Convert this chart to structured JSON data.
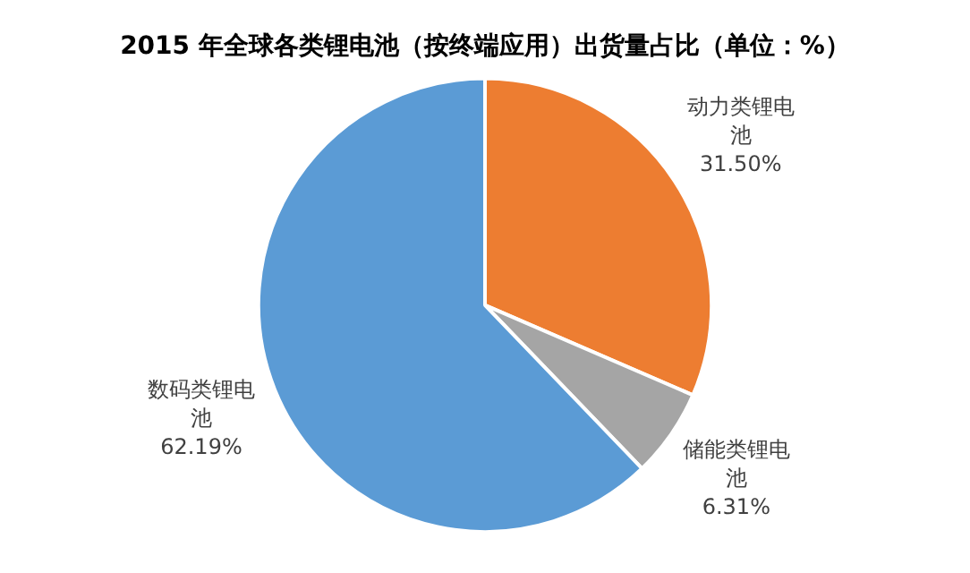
{
  "chart_data": {
    "type": "pie",
    "title": "2015 年全球各类锂电池（按终端应用）出货量占比（单位：%）",
    "categories": [
      "动力类锂电池",
      "储能类锂电池",
      "数码类锂电池"
    ],
    "values": [
      31.5,
      6.31,
      62.19
    ],
    "colors": [
      "#ed7d31",
      "#a5a5a5",
      "#5b9bd5"
    ],
    "value_labels": [
      "31.50%",
      "6.31%",
      "62.19%"
    ],
    "legend": false
  }
}
